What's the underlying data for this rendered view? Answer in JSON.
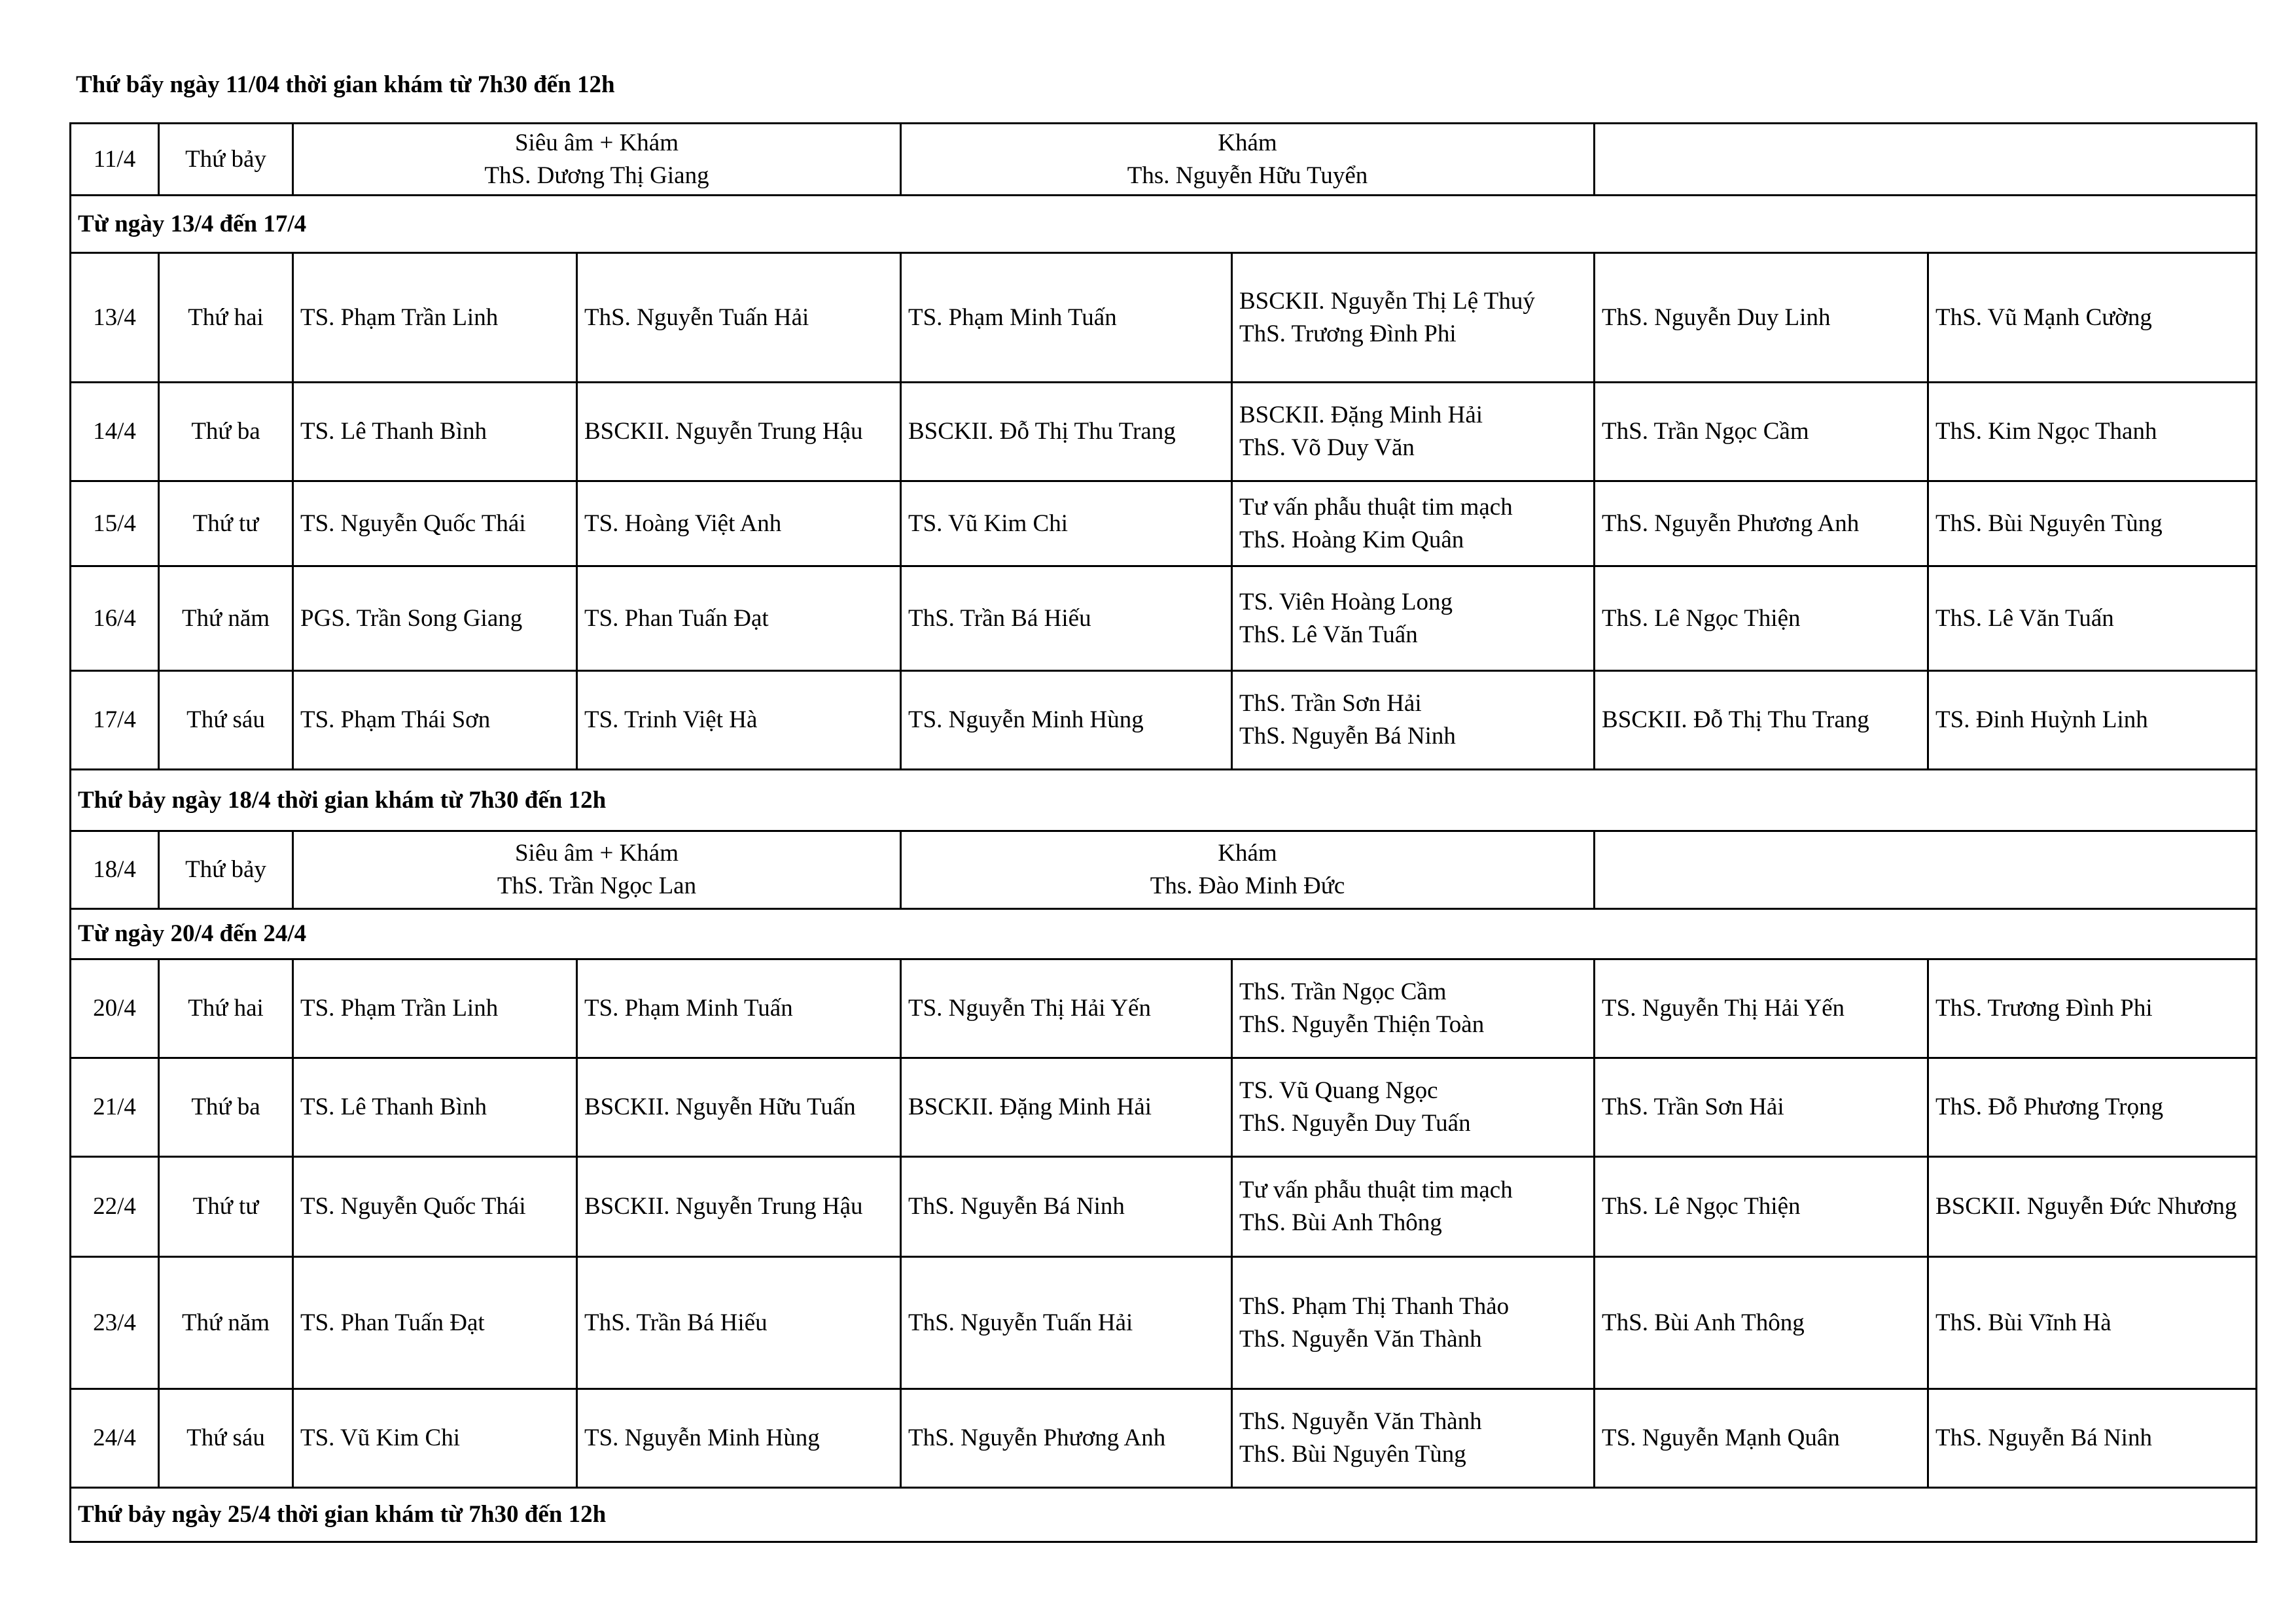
{
  "title": "Thứ bẩy ngày 11/04 thời gian khám từ 7h30 đến 12h",
  "saturday1": {
    "date": "11/4",
    "day": "Thứ bảy",
    "a_line1": "Siêu âm + Khám",
    "a_line2": "ThS. Dương Thị Giang",
    "b_line1": "Khám",
    "b_line2": "Ths. Nguyễn Hữu Tuyển"
  },
  "section1": "Từ ngày 13/4 đến 17/4",
  "week1": [
    {
      "date": "13/4",
      "day": "Thứ hai",
      "c1": "TS. Phạm Trần Linh",
      "c2": "ThS. Nguyễn Tuấn Hải",
      "c3": "TS. Phạm Minh Tuấn",
      "c4a": "BSCKII. Nguyễn Thị Lệ Thuý",
      "c4b": "ThS. Trương Đình Phi",
      "c5": "ThS. Nguyễn Duy Linh",
      "c6": "ThS. Vũ Mạnh Cường"
    },
    {
      "date": "14/4",
      "day": "Thứ ba",
      "c1": "TS. Lê Thanh Bình",
      "c2": "BSCKII. Nguyễn Trung Hậu",
      "c3": "BSCKII. Đỗ Thị Thu Trang",
      "c4a": "BSCKII. Đặng Minh Hải",
      "c4b": "ThS. Võ Duy Văn",
      "c5": "ThS. Trần Ngọc Cầm",
      "c6": "ThS. Kim Ngọc Thanh"
    },
    {
      "date": "15/4",
      "day": "Thứ tư",
      "c1": "TS. Nguyễn Quốc Thái",
      "c2": "TS. Hoàng Việt Anh",
      "c3": "TS. Vũ Kim Chi",
      "c4a": "Tư vấn phẫu thuật tim mạch",
      "c4b": "ThS. Hoàng Kim Quân",
      "c5": "ThS. Nguyễn Phương Anh",
      "c6": "ThS. Bùi Nguyên Tùng"
    },
    {
      "date": "16/4",
      "day": "Thứ năm",
      "c1": "PGS. Trần Song Giang",
      "c2": "TS. Phan Tuấn Đạt",
      "c3": "ThS. Trần Bá Hiếu",
      "c4a": "TS. Viên Hoàng Long",
      "c4b": "ThS. Lê Văn Tuấn",
      "c5": "ThS. Lê Ngọc Thiện",
      "c6": "ThS. Lê Văn Tuấn"
    },
    {
      "date": "17/4",
      "day": "Thứ sáu",
      "c1": "TS. Phạm Thái Sơn",
      "c2": "TS. Trinh Việt Hà",
      "c3": "TS. Nguyễn Minh Hùng",
      "c4a": "ThS. Trần Sơn Hải",
      "c4b": "ThS. Nguyễn Bá Ninh",
      "c5": "BSCKII. Đỗ Thị Thu Trang",
      "c6": "TS. Đinh Huỳnh Linh"
    }
  ],
  "section2": "Thứ bảy ngày 18/4 thời gian khám từ 7h30 đến 12h",
  "saturday2": {
    "date": "18/4",
    "day": "Thứ bảy",
    "a_line1": "Siêu âm + Khám",
    "a_line2": "ThS. Trần Ngọc Lan",
    "b_line1": "Khám",
    "b_line2": "Ths. Đào Minh Đức"
  },
  "section3": "Từ ngày 20/4 đến 24/4",
  "week2": [
    {
      "date": "20/4",
      "day": "Thứ hai",
      "c1": "TS. Phạm Trần Linh",
      "c2": "TS. Phạm Minh Tuấn",
      "c3": "TS. Nguyễn Thị Hải Yến",
      "c4a": "ThS. Trần Ngọc Cầm",
      "c4b": "ThS. Nguyễn Thiện Toàn",
      "c5": "TS. Nguyễn Thị Hải Yến",
      "c6": "ThS. Trương Đình Phi"
    },
    {
      "date": "21/4",
      "day": "Thứ ba",
      "c1": "TS. Lê Thanh Bình",
      "c2": "BSCKII. Nguyễn Hữu Tuấn",
      "c3": "BSCKII. Đặng Minh Hải",
      "c4a": "TS. Vũ Quang Ngọc",
      "c4b": "ThS. Nguyễn Duy Tuấn",
      "c5": "ThS. Trần Sơn Hải",
      "c6": "ThS. Đỗ Phương Trọng"
    },
    {
      "date": "22/4",
      "day": "Thứ tư",
      "c1": "TS. Nguyễn Quốc Thái",
      "c2": "BSCKII. Nguyễn Trung Hậu",
      "c3": "ThS. Nguyễn Bá Ninh",
      "c4a": "Tư vấn phẫu thuật tim mạch",
      "c4b": "ThS. Bùi Anh Thông",
      "c5": "ThS. Lê Ngọc Thiện",
      "c6": "BSCKII. Nguyễn Đức Nhương"
    },
    {
      "date": "23/4",
      "day": "Thứ năm",
      "c1": "TS. Phan Tuấn Đạt",
      "c2": "ThS. Trần Bá Hiếu",
      "c3": "ThS. Nguyễn Tuấn Hải",
      "c4a": "ThS. Phạm Thị Thanh Thảo",
      "c4b": "ThS. Nguyễn Văn Thành",
      "c5": "ThS. Bùi Anh Thông",
      "c6": "ThS. Bùi Vĩnh Hà"
    },
    {
      "date": "24/4",
      "day": "Thứ sáu",
      "c1": "TS. Vũ Kim Chi",
      "c2": "TS. Nguyễn Minh Hùng",
      "c3": "ThS. Nguyễn Phương Anh",
      "c4a": "ThS. Nguyễn Văn Thành",
      "c4b": "ThS. Bùi Nguyên Tùng",
      "c5": "TS. Nguyễn Mạnh Quân",
      "c6": "ThS. Nguyễn Bá Ninh"
    }
  ],
  "section4": "Thứ bảy ngày 25/4  thời gian khám từ 7h30 đến 12h"
}
